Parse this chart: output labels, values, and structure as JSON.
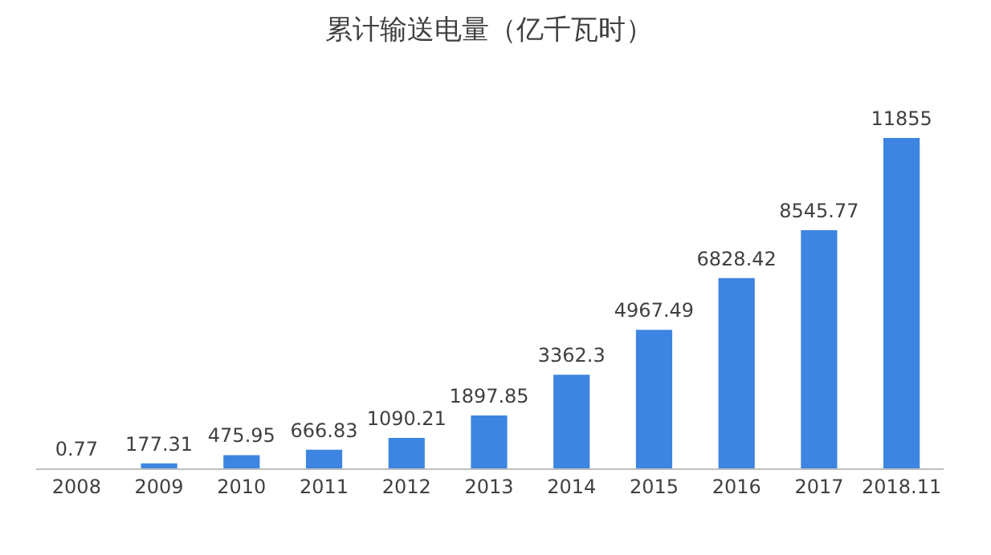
{
  "chart_data": {
    "type": "bar",
    "title": "累计输送电量（亿千瓦时）",
    "categories": [
      "2008",
      "2009",
      "2010",
      "2011",
      "2012",
      "2013",
      "2014",
      "2015",
      "2016",
      "2017",
      "2018.11"
    ],
    "values": [
      0.77,
      177.31,
      475.95,
      666.83,
      1090.21,
      1897.85,
      3362.3,
      4967.49,
      6828.42,
      8545.77,
      11855
    ],
    "color": "#3d85e0",
    "data_labels": true
  }
}
